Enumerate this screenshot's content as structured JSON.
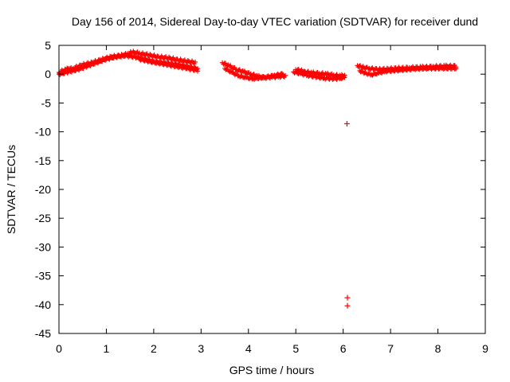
{
  "chart_data": {
    "type": "scatter",
    "title": "Day 156 of 2014, Sidereal Day-to-day VTEC variation (SDTVAR) for receiver dund",
    "xlabel": "GPS time / hours",
    "ylabel": "SDTVAR / TECUs",
    "xlim": [
      0,
      9
    ],
    "ylim": [
      -45,
      5
    ],
    "x_ticks": [
      0,
      1,
      2,
      3,
      4,
      5,
      6,
      7,
      8,
      9
    ],
    "y_ticks": [
      5,
      0,
      -5,
      -10,
      -15,
      -20,
      -25,
      -30,
      -35,
      -40,
      -45
    ],
    "grid": false,
    "marker": "+",
    "color": "#ff0000",
    "series": [
      {
        "name": "dund",
        "tracks": [
          {
            "label": "arc-a",
            "width": 1.6,
            "points": [
              [
                0.0,
                0.3
              ],
              [
                0.15,
                0.8
              ],
              [
                0.3,
                1.0
              ],
              [
                0.5,
                1.6
              ],
              [
                0.7,
                2.0
              ],
              [
                0.9,
                2.5
              ],
              [
                1.1,
                3.0
              ],
              [
                1.3,
                3.2
              ],
              [
                1.45,
                3.5
              ],
              [
                1.55,
                3.8
              ],
              [
                1.7,
                3.6
              ],
              [
                1.9,
                3.3
              ],
              [
                2.1,
                3.0
              ],
              [
                2.3,
                2.8
              ],
              [
                2.5,
                2.5
              ],
              [
                2.7,
                2.2
              ],
              [
                2.9,
                2.0
              ]
            ]
          },
          {
            "label": "arc-b",
            "width": 1.2,
            "points": [
              [
                0.0,
                0.0
              ],
              [
                0.2,
                0.4
              ],
              [
                0.4,
                0.8
              ],
              [
                0.6,
                1.4
              ],
              [
                0.8,
                2.0
              ],
              [
                1.0,
                2.6
              ],
              [
                1.2,
                3.0
              ],
              [
                1.4,
                3.2
              ],
              [
                1.6,
                3.0
              ],
              [
                1.8,
                2.6
              ],
              [
                2.0,
                2.2
              ],
              [
                2.2,
                2.0
              ],
              [
                2.4,
                1.8
              ],
              [
                2.6,
                1.5
              ],
              [
                2.8,
                1.2
              ],
              [
                2.95,
                0.9
              ]
            ]
          },
          {
            "label": "arc-c",
            "width": 1.0,
            "points": [
              [
                1.7,
                2.6
              ],
              [
                1.9,
                2.2
              ],
              [
                2.1,
                1.9
              ],
              [
                2.3,
                1.6
              ],
              [
                2.5,
                1.3
              ],
              [
                2.7,
                1.0
              ],
              [
                2.95,
                0.6
              ]
            ]
          },
          {
            "label": "arc-d",
            "width": 1.4,
            "points": [
              [
                3.45,
                2.0
              ],
              [
                3.6,
                1.4
              ],
              [
                3.75,
                0.8
              ],
              [
                3.9,
                0.4
              ],
              [
                4.05,
                0.0
              ],
              [
                4.2,
                -0.4
              ],
              [
                4.35,
                -0.6
              ],
              [
                4.5,
                -0.5
              ],
              [
                4.65,
                -0.4
              ],
              [
                4.8,
                -0.3
              ]
            ]
          },
          {
            "label": "arc-e",
            "width": 1.0,
            "points": [
              [
                3.5,
                1.0
              ],
              [
                3.65,
                0.3
              ],
              [
                3.8,
                -0.3
              ],
              [
                3.95,
                -0.6
              ],
              [
                4.1,
                -0.8
              ],
              [
                4.3,
                -0.6
              ],
              [
                4.55,
                -0.2
              ],
              [
                4.75,
                0.1
              ]
            ]
          },
          {
            "label": "arc-f",
            "width": 1.5,
            "points": [
              [
                5.0,
                0.8
              ],
              [
                5.1,
                0.6
              ],
              [
                5.2,
                0.4
              ],
              [
                5.35,
                0.2
              ],
              [
                5.5,
                0.1
              ],
              [
                5.65,
                0.0
              ],
              [
                5.8,
                -0.2
              ],
              [
                5.95,
                -0.3
              ],
              [
                6.05,
                -0.2
              ]
            ]
          },
          {
            "label": "arc-g",
            "width": 1.2,
            "points": [
              [
                4.95,
                0.4
              ],
              [
                5.1,
                0.1
              ],
              [
                5.25,
                -0.2
              ],
              [
                5.45,
                -0.5
              ],
              [
                5.6,
                -0.7
              ],
              [
                5.8,
                -0.8
              ],
              [
                5.95,
                -0.7
              ],
              [
                6.05,
                -0.5
              ]
            ]
          },
          {
            "label": "arc-h",
            "width": 1.4,
            "points": [
              [
                6.3,
                1.5
              ],
              [
                6.4,
                1.2
              ],
              [
                6.55,
                1.0
              ],
              [
                6.75,
                0.8
              ],
              [
                6.95,
                0.9
              ],
              [
                7.15,
                1.0
              ],
              [
                7.4,
                1.1
              ],
              [
                7.65,
                1.2
              ],
              [
                7.9,
                1.3
              ],
              [
                8.15,
                1.4
              ],
              [
                8.4,
                1.4
              ]
            ]
          },
          {
            "label": "arc-i",
            "width": 1.0,
            "points": [
              [
                6.35,
                0.6
              ],
              [
                6.45,
                0.2
              ],
              [
                6.6,
                -0.1
              ],
              [
                6.75,
                0.2
              ],
              [
                6.9,
                0.5
              ],
              [
                7.2,
                0.7
              ],
              [
                7.5,
                0.9
              ],
              [
                7.8,
                1.0
              ],
              [
                8.1,
                1.0
              ],
              [
                8.4,
                1.0
              ]
            ]
          },
          {
            "label": "arc-j",
            "width": 1.0,
            "points": [
              [
                0.05,
                0.2
              ],
              [
                0.15,
                0.6
              ],
              [
                0.2,
                1.0
              ],
              [
                0.25,
                0.6
              ]
            ]
          }
        ],
        "points": [
          [
            6.08,
            -8.6
          ],
          [
            6.09,
            -38.8
          ],
          [
            6.09,
            -40.2
          ]
        ]
      }
    ]
  }
}
